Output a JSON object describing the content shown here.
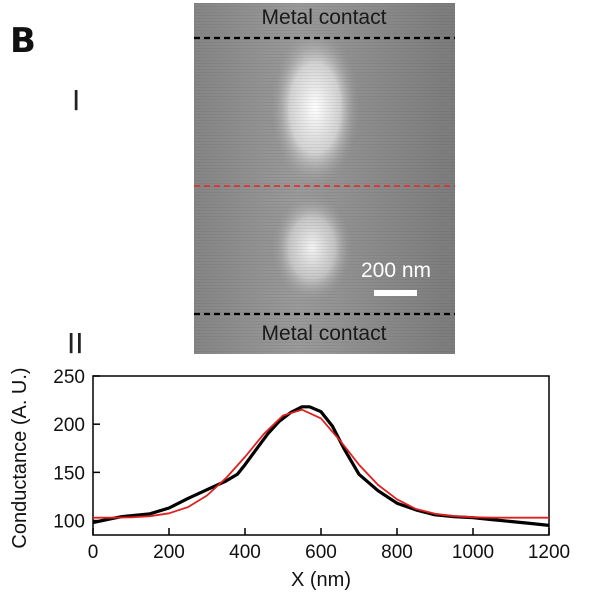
{
  "panel_letter": "B",
  "subpanels": {
    "top": "I",
    "bottom": "II"
  },
  "image_panel": {
    "top_label": "Metal contact",
    "bottom_label": "Metal contact",
    "scale_bar_label": "200 nm",
    "colors": {
      "dashed_line": "#000000",
      "midline": "#e03030",
      "scale_bar": "#ffffff"
    }
  },
  "chart_data": {
    "type": "line",
    "xlabel": "X (nm)",
    "ylabel": "Conductance (A. U.)",
    "xlim": [
      0,
      1200
    ],
    "ylim": [
      85,
      250
    ],
    "x_ticks": [
      0,
      200,
      400,
      600,
      800,
      1000,
      1200
    ],
    "y_ticks": [
      100,
      150,
      200,
      250
    ],
    "series": [
      {
        "color": "#000000",
        "x": [
          0,
          25,
          50,
          75,
          100,
          150,
          200,
          250,
          300,
          350,
          380,
          400,
          430,
          460,
          490,
          520,
          550,
          570,
          600,
          630,
          660,
          700,
          750,
          800,
          850,
          900,
          950,
          1000,
          1050,
          1100,
          1150,
          1200
        ],
        "y": [
          98,
          100,
          102,
          104,
          105,
          107,
          113,
          123,
          132,
          141,
          148,
          158,
          174,
          190,
          203,
          212,
          218,
          218,
          213,
          198,
          175,
          148,
          131,
          118,
          111,
          106,
          104,
          103,
          101,
          99,
          97,
          95
        ]
      },
      {
        "color": "#e02020",
        "x": [
          0,
          50,
          100,
          150,
          200,
          250,
          300,
          350,
          400,
          450,
          500,
          550,
          600,
          650,
          700,
          750,
          800,
          850,
          900,
          950,
          1000,
          1050,
          1100,
          1150,
          1200
        ],
        "y": [
          103,
          103,
          103.4,
          104.5,
          107.5,
          114,
          126,
          144,
          166,
          190,
          209,
          215,
          206,
          183,
          158,
          137,
          122,
          112,
          107,
          104.5,
          103.5,
          103,
          103,
          103,
          103
        ]
      }
    ]
  }
}
